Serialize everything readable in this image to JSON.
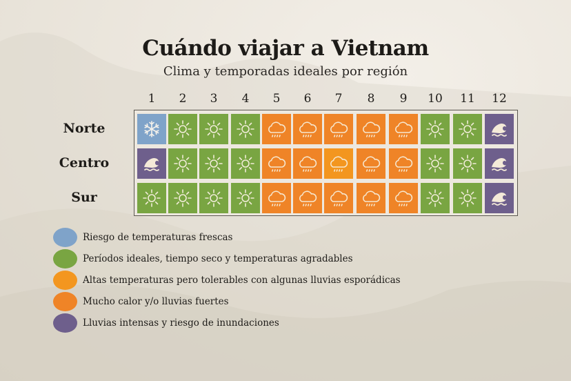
{
  "title": "Cuándo viajar a Vietnam",
  "subtitle": "Clima y temporadas ideales por región",
  "colors": {
    "cool": "#7fa3c9",
    "ideal": "#79a542",
    "tolerable": "#f3961f",
    "hot_rain": "#ef8427",
    "flood": "#6e5f8c"
  },
  "months": [
    "1",
    "2",
    "3",
    "4",
    "5",
    "6",
    "7",
    "8",
    "9",
    "10",
    "11",
    "12"
  ],
  "regions": [
    "Norte",
    "Centro",
    "Sur"
  ],
  "legend": [
    {
      "key": "cool",
      "label": "Riesgo de temperaturas frescas"
    },
    {
      "key": "ideal",
      "label": "Períodos ideales, tiempo seco y temperaturas agradables"
    },
    {
      "key": "tolerable",
      "label": "Altas temperaturas pero tolerables con algunas lluvias esporádicas"
    },
    {
      "key": "hot_rain",
      "label": "Mucho calor y/o lluvias fuertes"
    },
    {
      "key": "flood",
      "label": "Lluvias intensas y riesgo de inundaciones"
    }
  ],
  "icons": {
    "cool": "snowflake-icon",
    "ideal": "sun-icon",
    "tolerable": "rain-cloud-icon",
    "hot_rain": "rain-cloud-icon",
    "flood": "wave-icon"
  },
  "chart_data": {
    "type": "heatmap",
    "title": "Cuándo viajar a Vietnam",
    "subtitle": "Clima y temporadas ideales por región",
    "x": [
      "1",
      "2",
      "3",
      "4",
      "5",
      "6",
      "7",
      "8",
      "9",
      "10",
      "11",
      "12"
    ],
    "y": [
      "Norte",
      "Centro",
      "Sur"
    ],
    "xlabel": "",
    "ylabel": "",
    "values": [
      [
        "cool",
        "ideal",
        "ideal",
        "ideal",
        "hot_rain",
        "hot_rain",
        "hot_rain",
        "hot_rain",
        "hot_rain",
        "ideal",
        "ideal",
        "flood"
      ],
      [
        "flood",
        "ideal",
        "ideal",
        "ideal",
        "hot_rain",
        "hot_rain",
        "tolerable",
        "hot_rain",
        "hot_rain",
        "ideal",
        "ideal",
        "flood"
      ],
      [
        "ideal",
        "ideal",
        "ideal",
        "ideal",
        "hot_rain",
        "hot_rain",
        "hot_rain",
        "hot_rain",
        "hot_rain",
        "ideal",
        "ideal",
        "flood"
      ]
    ],
    "legend": [
      {
        "key": "cool",
        "label": "Riesgo de temperaturas frescas",
        "color": "#7fa3c9"
      },
      {
        "key": "ideal",
        "label": "Períodos ideales, tiempo seco y temperaturas agradables",
        "color": "#79a542"
      },
      {
        "key": "tolerable",
        "label": "Altas temperaturas pero tolerables con algunas lluvias esporádicas",
        "color": "#f3961f"
      },
      {
        "key": "hot_rain",
        "label": "Mucho calor y/o lluvias fuertes",
        "color": "#ef8427"
      },
      {
        "key": "flood",
        "label": "Lluvias intensas y riesgo de inundaciones",
        "color": "#6e5f8c"
      }
    ],
    "legend_position": "bottom-left",
    "grid": false
  }
}
